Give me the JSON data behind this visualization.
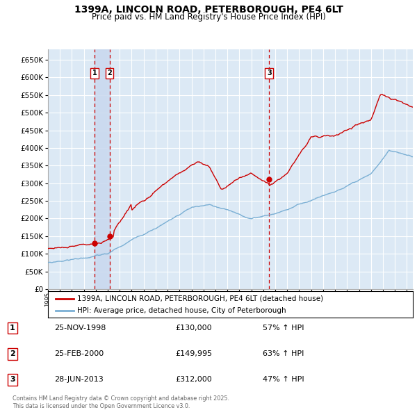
{
  "title": "1399A, LINCOLN ROAD, PETERBOROUGH, PE4 6LT",
  "subtitle": "Price paid vs. HM Land Registry's House Price Index (HPI)",
  "title_fontsize": 10,
  "subtitle_fontsize": 8.5,
  "bg_color": "#dce9f5",
  "plot_bg_color": "#dce9f5",
  "grid_color": "#ffffff",
  "red_line_color": "#cc0000",
  "blue_line_color": "#7aafd4",
  "sale_marker_color": "#cc0000",
  "vline_color": "#cc0000",
  "highlight_color": "#c8d8ee",
  "ylim": [
    0,
    680000
  ],
  "ytick_step": 50000,
  "legend_label_red": "1399A, LINCOLN ROAD, PETERBOROUGH, PE4 6LT (detached house)",
  "legend_label_blue": "HPI: Average price, detached house, City of Peterborough",
  "sale1_date": 1998.9,
  "sale1_price": 130000,
  "sale1_label": "1",
  "sale2_date": 2000.15,
  "sale2_price": 149995,
  "sale2_label": "2",
  "sale3_date": 2013.49,
  "sale3_price": 312000,
  "sale3_label": "3",
  "table_rows": [
    {
      "num": "1",
      "date": "25-NOV-1998",
      "price": "£130,000",
      "hpi": "57% ↑ HPI"
    },
    {
      "num": "2",
      "date": "25-FEB-2000",
      "price": "£149,995",
      "hpi": "63% ↑ HPI"
    },
    {
      "num": "3",
      "date": "28-JUN-2013",
      "price": "£312,000",
      "hpi": "47% ↑ HPI"
    }
  ],
  "footnote": "Contains HM Land Registry data © Crown copyright and database right 2025.\nThis data is licensed under the Open Government Licence v3.0.",
  "xmin": 1995.0,
  "xmax": 2025.5
}
